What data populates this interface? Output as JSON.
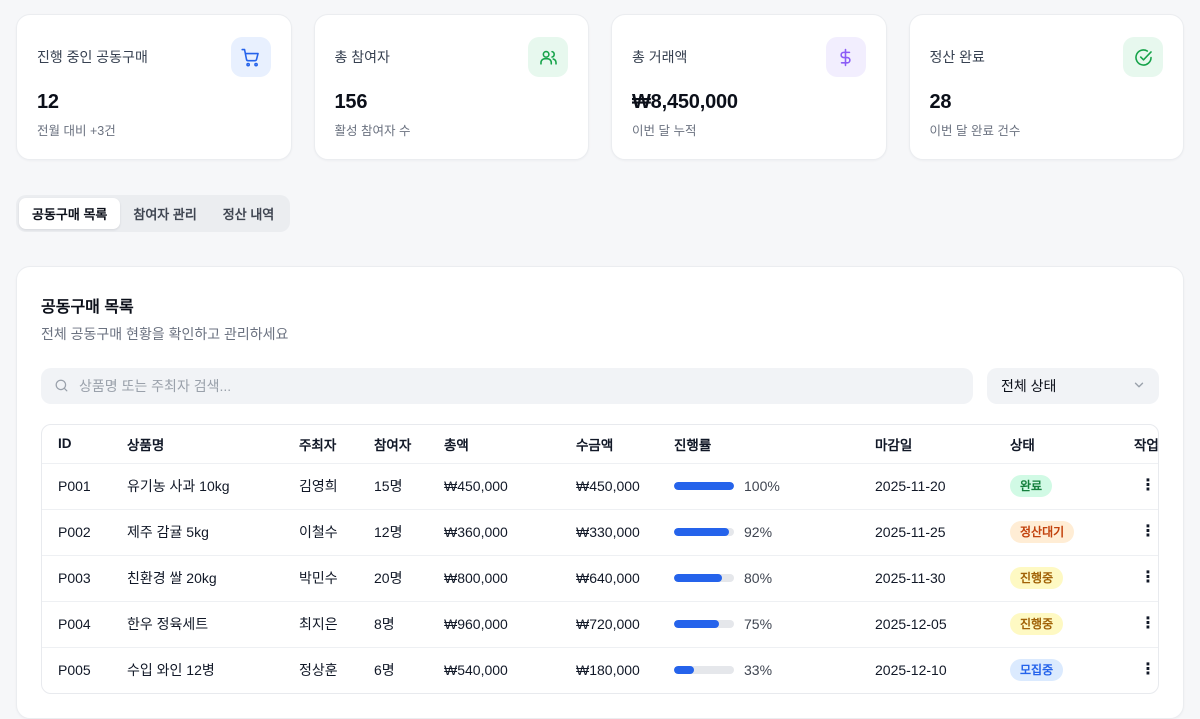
{
  "stats": [
    {
      "title": "진행 중인 공동구매",
      "value": "12",
      "sub": "전월 대비 +3건",
      "icon": "cart-icon",
      "icon_color": "#2563eb",
      "icon_bg": "#e8f0fe"
    },
    {
      "title": "총 참여자",
      "value": "156",
      "sub": "활성 참여자 수",
      "icon": "users-icon",
      "icon_color": "#16a34a",
      "icon_bg": "#e7f8ee"
    },
    {
      "title": "총 거래액",
      "value": "₩8,450,000",
      "sub": "이번 달 누적",
      "icon": "dollar-icon",
      "icon_color": "#8b5cf6",
      "icon_bg": "#f2eefe"
    },
    {
      "title": "정산 완료",
      "value": "28",
      "sub": "이번 달 완료 건수",
      "icon": "check-circle-icon",
      "icon_color": "#16a34a",
      "icon_bg": "#e7f8ee"
    }
  ],
  "tabs": [
    {
      "label": "공동구매 목록",
      "active": true
    },
    {
      "label": "참여자 관리",
      "active": false
    },
    {
      "label": "정산 내역",
      "active": false
    }
  ],
  "panel": {
    "title": "공동구매 목록",
    "subtitle": "전체 공동구매 현황을 확인하고 관리하세요",
    "search_placeholder": "상품명 또는 주최자 검색...",
    "search_value": "",
    "status_filter_value": "전체 상태"
  },
  "table": {
    "columns": [
      "ID",
      "상품명",
      "주최자",
      "참여자",
      "총액",
      "수금액",
      "진행률",
      "마감일",
      "상태",
      "작업"
    ],
    "rows": [
      {
        "id": "P001",
        "product": "유기농 사과 10kg",
        "organizer": "김영희",
        "participants": "15명",
        "total": "₩450,000",
        "collected": "₩450,000",
        "progress": 100,
        "deadline": "2025-11-20",
        "status": "완료",
        "status_type": "complete"
      },
      {
        "id": "P002",
        "product": "제주 감귤 5kg",
        "organizer": "이철수",
        "participants": "12명",
        "total": "₩360,000",
        "collected": "₩330,000",
        "progress": 92,
        "deadline": "2025-11-25",
        "status": "정산대기",
        "status_type": "pending"
      },
      {
        "id": "P003",
        "product": "친환경 쌀 20kg",
        "organizer": "박민수",
        "participants": "20명",
        "total": "₩800,000",
        "collected": "₩640,000",
        "progress": 80,
        "deadline": "2025-11-30",
        "status": "진행중",
        "status_type": "active"
      },
      {
        "id": "P004",
        "product": "한우 정육세트",
        "organizer": "최지은",
        "participants": "8명",
        "total": "₩960,000",
        "collected": "₩720,000",
        "progress": 75,
        "deadline": "2025-12-05",
        "status": "진행중",
        "status_type": "active"
      },
      {
        "id": "P005",
        "product": "수입 와인 12병",
        "organizer": "정상훈",
        "participants": "6명",
        "total": "₩540,000",
        "collected": "₩180,000",
        "progress": 33,
        "deadline": "2025-12-10",
        "status": "모집중",
        "status_type": "recruiting"
      }
    ],
    "kebab_glyph": "⋮"
  },
  "colors": {
    "accent_blue": "#2563eb",
    "status_complete_bg": "#d1fae5",
    "status_complete_text": "#15803d",
    "status_pending_bg": "#ffedd5",
    "status_pending_text": "#c2410c",
    "status_active_bg": "#fef9c3",
    "status_active_text": "#a16207",
    "status_recruiting_bg": "#dbeafe",
    "status_recruiting_text": "#2563eb"
  }
}
